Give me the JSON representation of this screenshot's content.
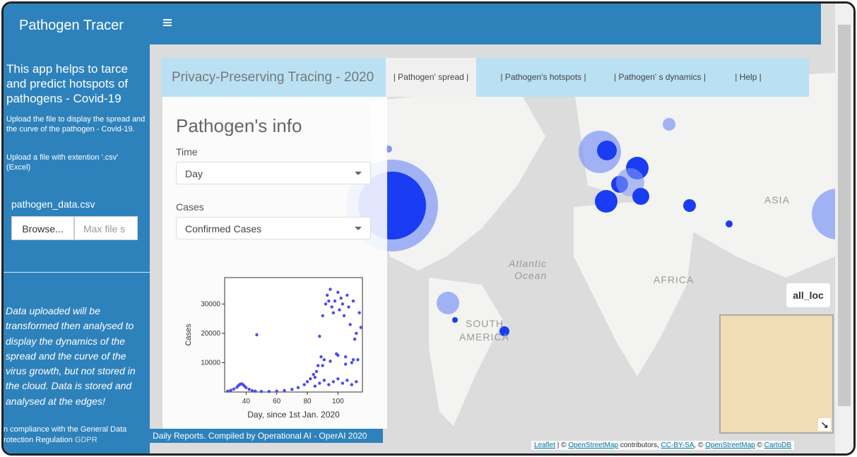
{
  "sidebar": {
    "brand": "Pathogen Tracer",
    "intro": "This app helps to tarce and predict hotspots of pathogens - Covid-19",
    "upload_note": "Upload the file to display the spread and the curve of the pathogen - Covid-19.",
    "extension_note": "Upload a file with extention '.csv' (Excel)",
    "file_label": "pathogen_data.csv",
    "browse_button": "Browse...",
    "file_placeholder": "Max file s",
    "privacy_note": "Data uploaded will be transformed then analysed to display the dynamics of the spread and the curve of the virus growth, but not stored in the cloud. Data is stored and analysed at the edges!",
    "compliance": "n compliance with the General Data",
    "compliance_2": "rotection Regulation",
    "gdpr": "GDPR"
  },
  "navbar": {
    "title": "Privacy-Preserving Tracing - 2020",
    "tabs": [
      "| Pathogen' spread |",
      "| Pathogen's hotspots |",
      "| Pathogen' s dynamics |",
      "| Help |"
    ]
  },
  "panel": {
    "title": "Pathogen's info",
    "time_label": "Time",
    "time_value": "Day",
    "cases_label": "Cases",
    "cases_value": "Confirmed Cases"
  },
  "plot": {
    "type": "scatter",
    "x_label": "Day, since 1st Jan. 2020",
    "y_label": "Cases",
    "color": "#4b4bf0",
    "xlim": [
      26,
      116
    ],
    "ylim": [
      0,
      39000
    ],
    "xticks": [
      40,
      60,
      80,
      100
    ],
    "yticks": [
      10000,
      20000,
      30000
    ],
    "x": [
      28,
      30,
      32,
      34,
      35,
      36,
      37,
      38,
      39,
      40,
      42,
      44,
      46,
      47,
      50,
      55,
      60,
      65,
      70,
      74,
      78,
      80,
      82,
      84,
      85,
      86,
      87,
      88,
      89,
      90,
      91,
      92,
      93,
      94,
      95,
      96,
      97,
      98,
      99,
      100,
      101,
      102,
      103,
      104,
      105,
      106,
      107,
      108,
      109,
      110,
      111,
      112,
      113,
      114,
      115,
      85,
      88,
      91,
      94,
      97,
      100,
      103,
      106,
      109,
      112,
      90,
      95,
      100,
      105,
      110
    ],
    "y": [
      300,
      600,
      1000,
      1600,
      2200,
      2600,
      2800,
      2500,
      2000,
      1500,
      900,
      500,
      300,
      19500,
      200,
      200,
      300,
      500,
      900,
      1500,
      2500,
      3500,
      4500,
      6000,
      5000,
      7000,
      9000,
      19000,
      12000,
      26000,
      11000,
      30000,
      33000,
      31000,
      35000,
      29000,
      27000,
      31000,
      13000,
      34000,
      28000,
      32000,
      30000,
      26000,
      12000,
      33000,
      29000,
      23000,
      10000,
      31000,
      18000,
      20000,
      11000,
      27000,
      22000,
      2000,
      3000,
      4000,
      2500,
      3500,
      4500,
      3000,
      4000,
      2500,
      3500,
      9000,
      10500,
      12500,
      9500,
      11000
    ]
  },
  "footer_note": "Daily Reports. Compiled by Operational AI - OperAI 2020",
  "map": {
    "labels": [
      "ASIA",
      "Atlantic",
      "Ocean",
      "AFRICA",
      "SOUTH",
      "AMERICA"
    ],
    "layer_control": "all_loc",
    "attribution": [
      "Leaflet",
      " | © ",
      "OpenStreetMap",
      " contributors, ",
      "CC-BY-SA",
      ", © ",
      "OpenStreetMap",
      " © ",
      "CartoDB"
    ]
  }
}
